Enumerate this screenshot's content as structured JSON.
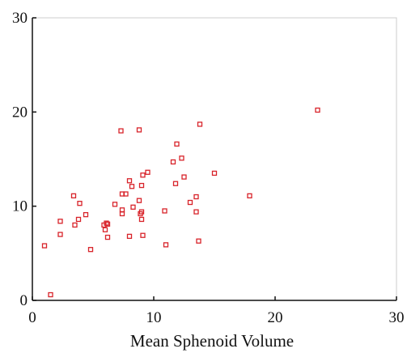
{
  "chart_data": {
    "type": "scatter",
    "title": "",
    "xlabel": "Mean Sphenoid Volume",
    "ylabel": "",
    "xlim": [
      0,
      30
    ],
    "ylim": [
      0,
      30
    ],
    "x_ticks": [
      0,
      10,
      20,
      30
    ],
    "y_ticks": [
      0,
      10,
      20,
      30
    ],
    "x_tick_labels": [
      "0",
      "10",
      "20",
      "30"
    ],
    "y_tick_labels": [
      "0",
      "10",
      "20",
      "30"
    ],
    "grid": false,
    "legend": "none",
    "marker": "hollow-square",
    "colors": {
      "marker": "#d8232a",
      "axis": "#111111",
      "background": "#ffffff",
      "plot_border": "#cccccc"
    },
    "series": [
      {
        "points": [
          [
            1.0,
            5.8
          ],
          [
            1.5,
            0.6
          ],
          [
            2.3,
            7.0
          ],
          [
            2.3,
            8.4
          ],
          [
            3.4,
            11.1
          ],
          [
            3.5,
            8.0
          ],
          [
            3.8,
            8.6
          ],
          [
            3.9,
            10.3
          ],
          [
            4.4,
            9.1
          ],
          [
            4.8,
            5.4
          ],
          [
            5.9,
            8.0
          ],
          [
            6.0,
            7.5
          ],
          [
            6.1,
            8.2
          ],
          [
            6.2,
            6.7
          ],
          [
            6.2,
            8.1
          ],
          [
            6.8,
            10.2
          ],
          [
            7.3,
            18.0
          ],
          [
            7.4,
            9.2
          ],
          [
            7.4,
            9.6
          ],
          [
            7.4,
            11.3
          ],
          [
            7.7,
            11.3
          ],
          [
            8.0,
            6.8
          ],
          [
            8.0,
            12.7
          ],
          [
            8.2,
            12.1
          ],
          [
            8.3,
            9.9
          ],
          [
            8.8,
            10.6
          ],
          [
            8.8,
            18.1
          ],
          [
            8.9,
            9.2
          ],
          [
            9.0,
            8.6
          ],
          [
            9.0,
            9.4
          ],
          [
            9.0,
            12.2
          ],
          [
            9.1,
            13.3
          ],
          [
            9.1,
            6.9
          ],
          [
            9.5,
            13.6
          ],
          [
            10.9,
            9.5
          ],
          [
            11.0,
            5.9
          ],
          [
            11.6,
            14.7
          ],
          [
            11.8,
            12.4
          ],
          [
            11.9,
            16.6
          ],
          [
            12.3,
            15.1
          ],
          [
            12.5,
            13.1
          ],
          [
            13.0,
            10.4
          ],
          [
            13.5,
            9.4
          ],
          [
            13.5,
            11.0
          ],
          [
            13.7,
            6.3
          ],
          [
            13.8,
            18.7
          ],
          [
            15.0,
            13.5
          ],
          [
            17.9,
            11.1
          ],
          [
            23.5,
            20.2
          ]
        ]
      }
    ]
  }
}
